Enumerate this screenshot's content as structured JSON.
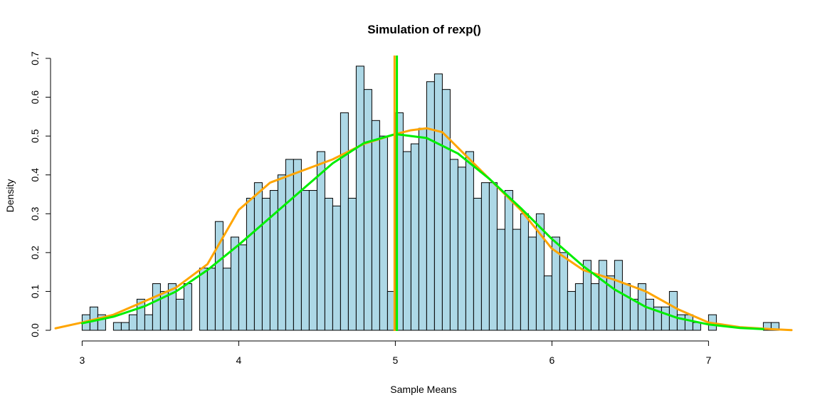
{
  "chart_data": {
    "type": "bar",
    "title": "Simulation of rexp()",
    "xlabel": "Sample Means",
    "ylabel": "Density",
    "xlim": [
      2.83,
      7.53
    ],
    "ylim": [
      0,
      0.7
    ],
    "x_ticks": [
      "3",
      "4",
      "5",
      "6",
      "7"
    ],
    "y_ticks": [
      "0.0",
      "0.1",
      "0.2",
      "0.3",
      "0.4",
      "0.5",
      "0.6",
      "0.7"
    ],
    "bin_start": 3.0,
    "bin_width": 0.05,
    "values": [
      0.04,
      0.06,
      0.04,
      0.0,
      0.02,
      0.02,
      0.04,
      0.08,
      0.04,
      0.12,
      0.1,
      0.12,
      0.08,
      0.12,
      0.0,
      0.16,
      0.16,
      0.28,
      0.16,
      0.24,
      0.22,
      0.34,
      0.38,
      0.34,
      0.36,
      0.4,
      0.44,
      0.44,
      0.36,
      0.36,
      0.46,
      0.34,
      0.32,
      0.56,
      0.34,
      0.68,
      0.62,
      0.54,
      0.5,
      0.1,
      0.56,
      0.46,
      0.48,
      0.52,
      0.64,
      0.66,
      0.62,
      0.44,
      0.42,
      0.46,
      0.34,
      0.38,
      0.38,
      0.26,
      0.36,
      0.26,
      0.3,
      0.24,
      0.3,
      0.14,
      0.24,
      0.2,
      0.1,
      0.12,
      0.18,
      0.12,
      0.18,
      0.14,
      0.18,
      0.12,
      0.08,
      0.12,
      0.08,
      0.06,
      0.06,
      0.1,
      0.04,
      0.04,
      0.02,
      0.0,
      0.04,
      0.0,
      0.0,
      0.0,
      0.0,
      0.0,
      0.0,
      0.02,
      0.02
    ],
    "bar_fill": "#add8e6",
    "bar_stroke": "#000000",
    "series": [
      {
        "name": "",
        "color": "#ffa500",
        "x": [
          2.83,
          3.0,
          3.2,
          3.4,
          3.6,
          3.8,
          4.0,
          4.2,
          4.4,
          4.6,
          4.8,
          5.0,
          5.1,
          5.2,
          5.3,
          5.4,
          5.6,
          5.8,
          6.0,
          6.2,
          6.4,
          6.6,
          6.8,
          7.0,
          7.2,
          7.4,
          7.53
        ],
        "y": [
          0.005,
          0.02,
          0.04,
          0.075,
          0.11,
          0.17,
          0.31,
          0.38,
          0.41,
          0.44,
          0.48,
          0.505,
          0.515,
          0.52,
          0.51,
          0.47,
          0.39,
          0.31,
          0.21,
          0.155,
          0.13,
          0.1,
          0.055,
          0.02,
          0.008,
          0.003,
          0.0005
        ]
      },
      {
        "name": "",
        "color": "#00ee00",
        "x": [
          3.0,
          3.2,
          3.4,
          3.6,
          3.8,
          4.0,
          4.2,
          4.4,
          4.6,
          4.8,
          5.0,
          5.2,
          5.4,
          5.6,
          5.8,
          6.0,
          6.2,
          6.4,
          6.6,
          6.8,
          7.0,
          7.2,
          7.35
        ],
        "y": [
          0.018,
          0.035,
          0.062,
          0.1,
          0.155,
          0.22,
          0.29,
          0.36,
          0.43,
          0.482,
          0.505,
          0.495,
          0.455,
          0.39,
          0.315,
          0.235,
          0.165,
          0.105,
          0.06,
          0.032,
          0.015,
          0.006,
          0.003
        ]
      }
    ],
    "vlines": [
      {
        "x": 4.995,
        "color": "#ffa500"
      },
      {
        "x": 5.01,
        "color": "#00ee00"
      }
    ],
    "grid": false
  }
}
